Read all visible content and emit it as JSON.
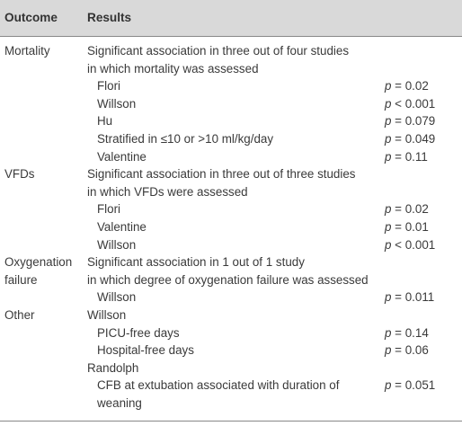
{
  "header": {
    "outcome": "Outcome",
    "results": "Results"
  },
  "rows": [
    {
      "outcome": "Mortality",
      "result": "Significant association in three out of four studies",
      "indent": false,
      "p_sym": "",
      "p_val": ""
    },
    {
      "outcome": "",
      "result": "in which mortality was assessed",
      "indent": false,
      "p_sym": "",
      "p_val": ""
    },
    {
      "outcome": "",
      "result": "Flori",
      "indent": true,
      "p_sym": "p",
      "p_val": " = 0.02"
    },
    {
      "outcome": "",
      "result": "Willson",
      "indent": true,
      "p_sym": "p",
      "p_val": " < 0.001"
    },
    {
      "outcome": "",
      "result": "Hu",
      "indent": true,
      "p_sym": "p",
      "p_val": " = 0.079"
    },
    {
      "outcome": "",
      "result": "Stratified in ≤10 or >10 ml/kg/day",
      "indent": true,
      "p_sym": "p",
      "p_val": " = 0.049"
    },
    {
      "outcome": "",
      "result": "Valentine",
      "indent": true,
      "p_sym": "p",
      "p_val": " = 0.11"
    },
    {
      "outcome": "VFDs",
      "result": "Significant association in three out of three studies",
      "indent": false,
      "p_sym": "",
      "p_val": ""
    },
    {
      "outcome": "",
      "result": "in which VFDs were assessed",
      "indent": false,
      "p_sym": "",
      "p_val": ""
    },
    {
      "outcome": "",
      "result": "Flori",
      "indent": true,
      "p_sym": "p",
      "p_val": " = 0.02"
    },
    {
      "outcome": "",
      "result": "Valentine",
      "indent": true,
      "p_sym": "p",
      "p_val": " = 0.01"
    },
    {
      "outcome": "",
      "result": "Willson",
      "indent": true,
      "p_sym": "p",
      "p_val": " < 0.001"
    },
    {
      "outcome": "Oxygenation",
      "result": "Significant association in 1 out of 1 study",
      "indent": false,
      "p_sym": "",
      "p_val": ""
    },
    {
      "outcome": "failure",
      "result": "in which degree of oxygenation failure was assessed",
      "indent": false,
      "p_sym": "",
      "p_val": ""
    },
    {
      "outcome": "",
      "result": "Willson",
      "indent": true,
      "p_sym": "p",
      "p_val": " = 0.011"
    },
    {
      "outcome": "Other",
      "result": "Willson",
      "indent": false,
      "p_sym": "",
      "p_val": ""
    },
    {
      "outcome": "",
      "result": "PICU-free days",
      "indent": true,
      "p_sym": "p",
      "p_val": " = 0.14"
    },
    {
      "outcome": "",
      "result": "Hospital-free days",
      "indent": true,
      "p_sym": "p",
      "p_val": " = 0.06"
    },
    {
      "outcome": "",
      "result": "Randolph",
      "indent": false,
      "p_sym": "",
      "p_val": ""
    },
    {
      "outcome": "",
      "result": "CFB at extubation associated with duration of",
      "indent": true,
      "p_sym": "p",
      "p_val": " = 0.051"
    },
    {
      "outcome": "",
      "result": "weaning",
      "indent": true,
      "p_sym": "",
      "p_val": ""
    }
  ]
}
